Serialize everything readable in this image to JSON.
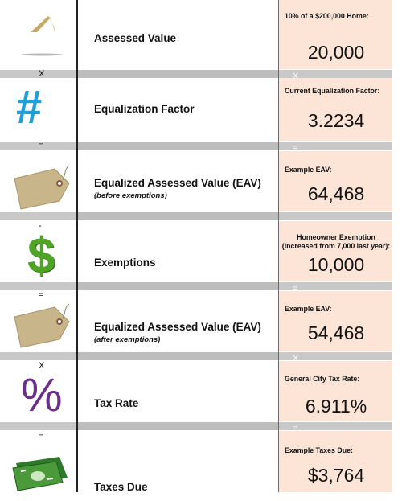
{
  "rows": [
    {
      "label": "Assessed Value",
      "sublabel": "",
      "caption": "10% of a $200,000 Home:",
      "value": "20,000",
      "icon": "house-roof-icon"
    },
    {
      "label": "Equalization Factor",
      "sublabel": "",
      "caption": "Current Equalization Factor:",
      "value": "3.2234",
      "icon": "hash-icon"
    },
    {
      "label": "Equalized Assessed Value (EAV)",
      "sublabel": "(before exemptions)",
      "caption": "Example EAV:",
      "value": "64,468",
      "icon": "price-tag-icon"
    },
    {
      "label": "Exemptions",
      "sublabel": "",
      "caption": "Homeowner Exemption (increased from 7,000 last year):",
      "value": "10,000",
      "icon": "dollar-sign-icon"
    },
    {
      "label": "Equalized Assessed Value (EAV)",
      "sublabel": "(after exemptions)",
      "caption": "Example EAV:",
      "value": "54,468",
      "icon": "price-tag-icon"
    },
    {
      "label": "Tax Rate",
      "sublabel": "",
      "caption": "General City Tax Rate:",
      "value": "6.911%",
      "icon": "percent-icon"
    },
    {
      "label": "Taxes Due",
      "sublabel": "",
      "caption": "Example Taxes Due:",
      "value": "$3,764",
      "icon": "money-stack-icon"
    }
  ],
  "operators": [
    {
      "left": "X",
      "right": "X"
    },
    {
      "left": "=",
      "right": "="
    },
    {
      "left": "-",
      "right": ""
    },
    {
      "left": "=",
      "right": "="
    },
    {
      "left": "X",
      "right": "X"
    },
    {
      "left": "=",
      "right": "="
    }
  ],
  "glyphs": {
    "hash": "#",
    "dollar": "$",
    "percent": "%"
  },
  "colors": {
    "value_background": "#fce5d6",
    "separator": "#c8c8c8",
    "hash_icon": "#1e9fd8",
    "dollar_icon": "#4fa428",
    "percent_icon": "#6b2f8a"
  }
}
